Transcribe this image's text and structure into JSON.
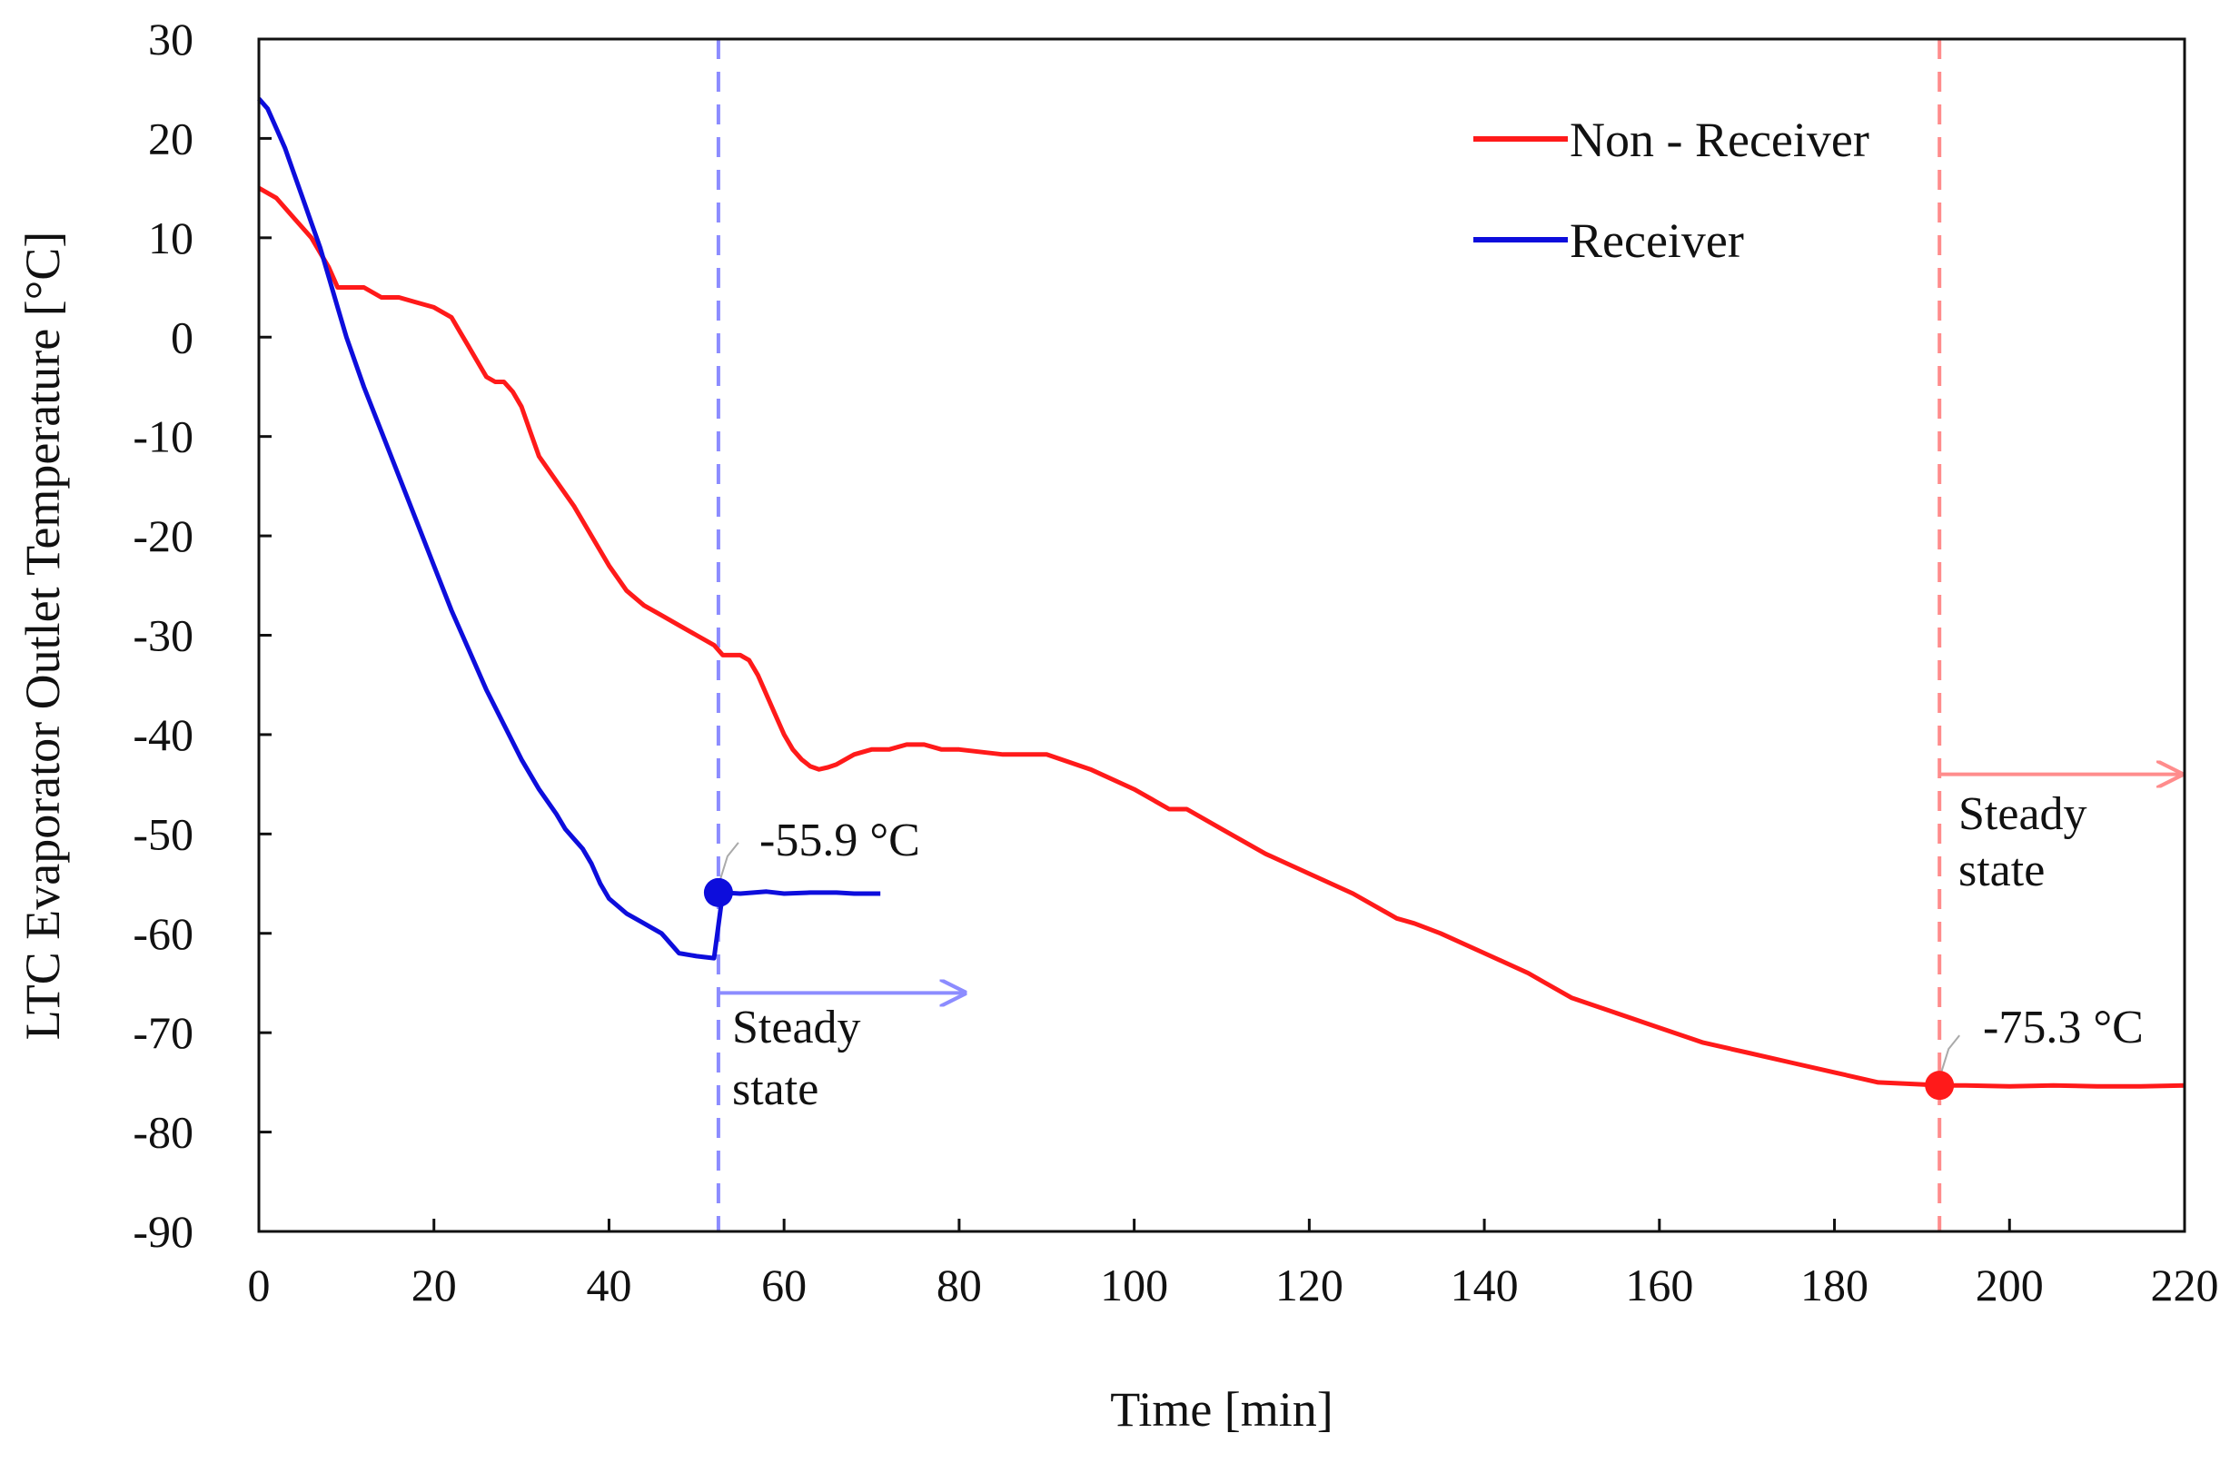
{
  "chart_data": {
    "type": "line",
    "title": "",
    "xlabel": "Time [min]",
    "ylabel": "LTC Evaporator Outlet Temperature [°C]",
    "xlim": [
      0,
      220
    ],
    "ylim": [
      -90,
      30
    ],
    "xticks": [
      0,
      20,
      40,
      60,
      80,
      100,
      120,
      140,
      160,
      180,
      200,
      220
    ],
    "yticks": [
      30,
      20,
      10,
      0,
      -10,
      -20,
      -30,
      -40,
      -50,
      -60,
      -70,
      -80,
      -90
    ],
    "xtick_labels": [
      "0",
      "20",
      "40",
      "60",
      "80",
      "100",
      "120",
      "140",
      "160",
      "180",
      "200",
      "220"
    ],
    "ytick_labels": [
      "30",
      "20",
      "10",
      "0",
      "-10",
      "-20",
      "-30",
      "-40",
      "-50",
      "-60",
      "-70",
      "-80",
      "-90"
    ],
    "grid": false,
    "legend_position": "top-right",
    "series": [
      {
        "name": "Non - Receiver",
        "color": "#ff1a1a",
        "x": [
          0,
          2,
          4,
          6,
          8,
          9,
          10,
          12,
          14,
          16,
          18,
          20,
          22,
          23,
          24,
          25,
          26,
          27,
          28,
          29,
          30,
          31,
          32,
          34,
          36,
          38,
          40,
          42,
          44,
          46,
          48,
          50,
          52,
          53,
          54,
          55,
          56,
          57,
          58,
          59,
          60,
          61,
          62,
          63,
          64,
          65,
          66,
          68,
          70,
          72,
          74,
          76,
          78,
          80,
          85,
          90,
          95,
          100,
          104,
          106,
          110,
          115,
          120,
          125,
          128,
          130,
          132,
          135,
          140,
          145,
          147,
          150,
          155,
          160,
          165,
          170,
          175,
          180,
          185,
          190,
          192,
          195,
          200,
          205,
          210,
          215,
          220
        ],
        "y": [
          15,
          14,
          12,
          10,
          7,
          5,
          5,
          5,
          4,
          4,
          3.5,
          3,
          2,
          0.5,
          -1,
          -2.5,
          -4,
          -4.5,
          -4.5,
          -5.5,
          -7,
          -9.5,
          -12,
          -14.5,
          -17,
          -20,
          -23,
          -25.5,
          -27,
          -28,
          -29,
          -30,
          -31,
          -32,
          -32,
          -32,
          -32.5,
          -34,
          -36,
          -38,
          -40,
          -41.5,
          -42.5,
          -43.2,
          -43.5,
          -43.3,
          -43,
          -42,
          -41.5,
          -41.5,
          -41,
          -41,
          -41.5,
          -41.5,
          -42,
          -42,
          -43.5,
          -45.5,
          -47.5,
          -47.5,
          -49.5,
          -52,
          -54,
          -56,
          -57.5,
          -58.5,
          -59,
          -60,
          -62,
          -64,
          -65,
          -66.5,
          -68,
          -69.5,
          -71,
          -72,
          -73,
          -74,
          -75,
          -75.2,
          -75.3,
          -75.3,
          -75.4,
          -75.3,
          -75.4,
          -75.4,
          -75.3
        ]
      },
      {
        "name": "Receiver",
        "color": "#0d0ddc",
        "x": [
          0,
          1,
          2,
          3,
          4,
          5,
          6,
          7,
          8,
          9,
          10,
          12,
          14,
          16,
          18,
          20,
          22,
          24,
          26,
          28,
          30,
          32,
          34,
          35,
          36,
          37,
          38,
          39,
          40,
          42,
          44,
          45,
          46,
          46.5,
          47,
          48,
          50,
          52,
          53,
          55,
          58,
          60,
          63,
          66,
          68,
          71
        ],
        "y": [
          24,
          23,
          21,
          19,
          16.5,
          14,
          11.5,
          9,
          6,
          3,
          0,
          -5,
          -9.5,
          -14,
          -18.5,
          -23,
          -27.5,
          -31.5,
          -35.5,
          -39,
          -42.5,
          -45.5,
          -48,
          -49.5,
          -50.5,
          -51.5,
          -53,
          -55,
          -56.5,
          -58,
          -59,
          -59.5,
          -60,
          -60.5,
          -61,
          -62,
          -62.3,
          -62.5,
          -55.9,
          -56,
          -55.8,
          -56,
          -55.9,
          -55.9,
          -56,
          -56
        ]
      }
    ],
    "annotations": [
      {
        "series": "Receiver",
        "x": 52.5,
        "y": -55.9,
        "label": "-55.9 °C"
      },
      {
        "series": "Non - Receiver",
        "x": 192,
        "y": -75.3,
        "label": "-75.3 °C"
      }
    ],
    "steady_state_markers": [
      {
        "series": "Receiver",
        "x": 52.5,
        "arrow_to_x": 81,
        "arrow_y": -66,
        "label_line1": "Steady",
        "label_line2": "state",
        "color": "#8c8cff"
      },
      {
        "series": "Non - Receiver",
        "x": 192,
        "arrow_to_x": 220,
        "arrow_y": -44,
        "label_line1": "Steady",
        "label_line2": "state",
        "color": "#ff8c8c"
      }
    ]
  }
}
